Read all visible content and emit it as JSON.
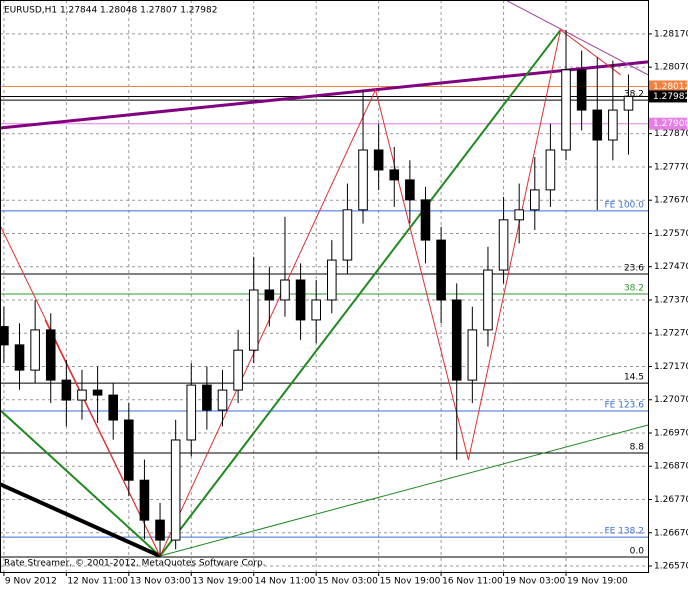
{
  "chart_data": {
    "type": "candlestick",
    "title": "EURUSD,H1  1.27844 1.28048 1.27807 1.27982",
    "footer": "Rate Streamer, © 2001-2012, MetaQuotes Software Corp.",
    "grid": true,
    "up_color": "#ffffff",
    "down_color": "#000000",
    "xlim": [
      -1,
      165
    ],
    "ylim": [
      1.26552,
      1.28272
    ],
    "xticks": [
      {
        "value": 0,
        "label": "9 Nov 2012"
      },
      {
        "value": 16,
        "label": "12 Nov 11:00"
      },
      {
        "value": 32,
        "label": "13 Nov 03:00"
      },
      {
        "value": 48,
        "label": "13 Nov 19:00"
      },
      {
        "value": 64,
        "label": "14 Nov 11:00"
      },
      {
        "value": 80,
        "label": "15 Nov 03:00"
      },
      {
        "value": 96,
        "label": "15 Nov 19:00"
      },
      {
        "value": 112,
        "label": "16 Nov 11:00"
      },
      {
        "value": 128,
        "label": "19 Nov 03:00"
      },
      {
        "value": 144,
        "label": "19 Nov 19:00"
      }
    ],
    "yticks": [
      {
        "value": 1.2817,
        "label": "1.28170"
      },
      {
        "value": 1.2807,
        "label": "1.28070"
      },
      {
        "value": 1.2787,
        "label": "1.27870"
      },
      {
        "value": 1.2777,
        "label": "1.27770"
      },
      {
        "value": 1.2767,
        "label": "1.27670"
      },
      {
        "value": 1.2757,
        "label": "1.27570"
      },
      {
        "value": 1.2747,
        "label": "1.27470"
      },
      {
        "value": 1.2737,
        "label": "1.27370"
      },
      {
        "value": 1.2727,
        "label": "1.27270"
      },
      {
        "value": 1.2717,
        "label": "1.27170"
      },
      {
        "value": 1.2707,
        "label": "1.27070"
      },
      {
        "value": 1.2697,
        "label": "1.26970"
      },
      {
        "value": 1.2687,
        "label": "1.26870"
      },
      {
        "value": 1.2677,
        "label": "1.26770"
      },
      {
        "value": 1.2667,
        "label": "1.26670"
      },
      {
        "value": 1.2657,
        "label": "1.26570"
      }
    ],
    "x": [
      0,
      4,
      8,
      12,
      16,
      20,
      24,
      28,
      32,
      36,
      40,
      44,
      48,
      52,
      56,
      60,
      64,
      68,
      72,
      76,
      80,
      84,
      88,
      92,
      96,
      100,
      104,
      108,
      112,
      116,
      120,
      124,
      128,
      132,
      136,
      140,
      144,
      148,
      152,
      156,
      160
    ],
    "open": [
      1.2729,
      1.27235,
      1.27159,
      1.2728,
      1.27129,
      1.27069,
      1.27099,
      1.27084,
      1.27009,
      1.26828,
      1.26708,
      1.26648,
      1.26949,
      1.27114,
      1.27039,
      1.27099,
      1.27219,
      1.274,
      1.2737,
      1.2743,
      1.2731,
      1.2737,
      1.2749,
      1.27641,
      1.27821,
      1.27761,
      1.27731,
      1.27671,
      1.2755,
      1.2737,
      1.27129,
      1.2728,
      1.2746,
      1.27611,
      1.27641,
      1.27701,
      1.27821,
      1.28062,
      1.27941,
      1.27851,
      1.27941
    ],
    "high": [
      1.2735,
      1.273,
      1.2737,
      1.2733,
      1.2719,
      1.2716,
      1.2717,
      1.2712,
      1.2706,
      1.2689,
      1.2676,
      1.2701,
      1.2718,
      1.2717,
      1.2716,
      1.2728,
      1.275,
      1.2747,
      1.2762,
      1.2748,
      1.2743,
      1.2755,
      1.2772,
      1.28002,
      1.279,
      1.2783,
      1.2779,
      1.2771,
      1.2759,
      1.2742,
      1.2735,
      1.2753,
      1.2768,
      1.2772,
      1.278,
      1.279,
      1.28182,
      1.2812,
      1.281,
      1.2809,
      1.28048
    ],
    "low": [
      1.2718,
      1.271,
      1.2712,
      1.2706,
      1.2699,
      1.2701,
      1.27,
      1.2695,
      1.2678,
      1.2665,
      1.266,
      1.2662,
      1.269,
      1.2698,
      1.2699,
      1.2706,
      1.2718,
      1.2729,
      1.2732,
      1.2725,
      1.2724,
      1.2733,
      1.2745,
      1.276,
      1.277,
      1.2765,
      1.276,
      1.2748,
      1.273,
      1.26889,
      1.2706,
      1.2723,
      1.2742,
      1.2754,
      1.2758,
      1.2765,
      1.2779,
      1.2788,
      1.2764,
      1.2779,
      1.27807
    ],
    "close": [
      1.27235,
      1.27159,
      1.2728,
      1.27129,
      1.27069,
      1.27099,
      1.27084,
      1.27009,
      1.26828,
      1.26708,
      1.26648,
      1.26949,
      1.27114,
      1.27039,
      1.27099,
      1.27219,
      1.274,
      1.2737,
      1.2743,
      1.2731,
      1.2737,
      1.2749,
      1.27641,
      1.27821,
      1.27761,
      1.27731,
      1.27671,
      1.2755,
      1.2737,
      1.27129,
      1.2728,
      1.2746,
      1.27611,
      1.27641,
      1.27701,
      1.27821,
      1.28062,
      1.27941,
      1.27851,
      1.27941,
      1.27982
    ],
    "levels": [
      {
        "value": 1.28012,
        "label": "1.28012",
        "color": "#f4813f",
        "kind": "price"
      },
      {
        "value": 1.27982,
        "label": "1.27982",
        "color": "#000000",
        "kind": "price"
      },
      {
        "value": 1.279,
        "label": "1.27900",
        "color": "#e67ee6",
        "kind": "price"
      },
      {
        "value": 1.27971,
        "label": "38.2",
        "color": "#000000",
        "kind": "fib"
      },
      {
        "value": 1.27638,
        "label": "FE 100.0",
        "color": "#3a6fd8",
        "kind": "fib"
      },
      {
        "value": 1.27448,
        "label": "23.6",
        "color": "#000000",
        "kind": "fib"
      },
      {
        "value": 1.27388,
        "label": "38.2",
        "color": "#2e9a2e",
        "kind": "fib"
      },
      {
        "value": 1.2712,
        "label": "14.5",
        "color": "#000000",
        "kind": "fib"
      },
      {
        "value": 1.27036,
        "label": "FE 123.6",
        "color": "#3a6fd8",
        "kind": "fib"
      },
      {
        "value": 1.2691,
        "label": "8.8",
        "color": "#000000",
        "kind": "fib"
      },
      {
        "value": 1.26657,
        "label": "FE 138.2",
        "color": "#3a6fd8",
        "kind": "fib"
      },
      {
        "value": 1.26597,
        "label": "0.0",
        "color": "#000000",
        "kind": "fib"
      }
    ],
    "trendlines": [
      {
        "x": [
          -1,
          165
        ],
        "y": [
          1.27887,
          1.28086
        ],
        "color": "#800080",
        "width": 3
      },
      {
        "x": [
          128.5,
          165
        ],
        "y": [
          1.28272,
          1.28047
        ],
        "color": "#a040a0",
        "width": 1
      },
      {
        "x": [
          40,
          142.6
        ],
        "y": [
          1.266,
          1.28182
        ],
        "color": "#1e8a1e",
        "width": 2
      },
      {
        "x": [
          40,
          165
        ],
        "y": [
          1.266,
          1.26994
        ],
        "color": "#1e8a1e",
        "width": 1
      },
      {
        "x": [
          -1,
          40
        ],
        "y": [
          1.27039,
          1.266
        ],
        "color": "#1e8a1e",
        "width": 2
      },
      {
        "x": [
          -1,
          40
        ],
        "y": [
          1.26816,
          1.266
        ],
        "color": "#000000",
        "width": 4
      },
      {
        "x": [
          -1,
          40
        ],
        "y": [
          1.27595,
          1.266
        ],
        "color": "#e03030",
        "width": 1
      },
      {
        "x": [
          10.5,
          40
        ],
        "y": [
          1.2731,
          1.266
        ],
        "color": "#e03030",
        "width": 1
      },
      {
        "x": [
          40,
          95.2,
          119,
          142.6,
          158
        ],
        "y": [
          1.266,
          1.28002,
          1.26889,
          1.28182,
          1.28047
        ],
        "color": "#e03030",
        "width": 1
      }
    ]
  }
}
